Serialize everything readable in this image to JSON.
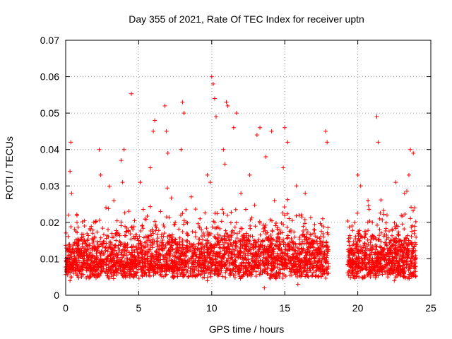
{
  "chart_data": {
    "type": "scatter",
    "title": "Day 355 of 2021, Rate Of TEC Index for receiver uptn",
    "xlabel": "GPS time / hours",
    "ylabel": "ROTI / TECUs",
    "xlim": [
      0,
      25
    ],
    "ylim": [
      0,
      0.07
    ],
    "xticks": [
      0,
      5,
      10,
      15,
      20,
      25
    ],
    "xtick_labels": [
      "0",
      "5",
      "10",
      "15",
      "20",
      "25"
    ],
    "yticks": [
      0,
      0.01,
      0.02,
      0.03,
      0.04,
      0.05,
      0.06,
      0.07
    ],
    "ytick_labels": [
      "0",
      "0.01",
      "0.02",
      "0.03",
      "0.04",
      "0.05",
      "0.06",
      "0.07"
    ],
    "grid": true,
    "legend": "none",
    "marker": "+",
    "color": "#ff0000",
    "data_gap_hours": [
      18.0,
      19.3
    ],
    "series": [
      {
        "x": [
          0.1,
          0.2,
          0.3,
          0.35,
          0.4,
          0.5,
          0.7,
          1.0,
          1.3,
          1.6,
          2.0,
          2.3,
          2.4,
          2.45,
          2.6,
          2.9,
          3.1,
          3.3,
          3.5,
          3.6,
          3.8,
          3.9,
          4.0,
          4.2,
          4.5,
          4.6,
          4.8,
          5.0,
          5.1,
          5.3,
          5.6,
          5.8,
          6.0,
          6.1,
          6.3,
          6.5,
          6.6,
          6.8,
          6.9,
          7.0,
          7.2,
          7.5,
          7.8,
          7.9,
          8.0,
          8.1,
          8.3,
          8.6,
          8.9,
          9.2,
          9.5,
          9.7,
          9.9,
          10.0,
          10.1,
          10.2,
          10.3,
          10.6,
          10.8,
          10.9,
          11.0,
          11.1,
          11.3,
          11.5,
          11.7,
          12.0,
          12.3,
          12.6,
          12.9,
          13.1,
          13.3,
          13.5,
          13.7,
          13.9,
          14.1,
          14.3,
          14.6,
          14.9,
          15.0,
          15.2,
          15.5,
          15.8,
          16.1,
          16.4,
          16.7,
          17.0,
          17.3,
          17.6,
          17.8,
          17.9,
          19.4,
          19.6,
          19.8,
          20.0,
          20.2,
          20.4,
          20.7,
          21.0,
          21.3,
          21.4,
          21.7,
          22.0,
          22.3,
          22.6,
          22.9,
          23.2,
          23.5,
          23.6,
          23.8,
          23.9,
          0.3,
          2.4,
          4.4,
          5.2,
          7.3,
          9.7,
          11.3,
          13.6,
          15.9,
          18.0,
          20.5,
          22.5
        ],
        "y": [
          0.0085,
          0.022,
          0.034,
          0.042,
          0.028,
          0.012,
          0.009,
          0.011,
          0.008,
          0.014,
          0.01,
          0.04,
          0.033,
          0.012,
          0.009,
          0.018,
          0.011,
          0.026,
          0.009,
          0.013,
          0.037,
          0.031,
          0.04,
          0.011,
          0.0553,
          0.018,
          0.01,
          0.015,
          0.031,
          0.009,
          0.012,
          0.035,
          0.045,
          0.048,
          0.014,
          0.023,
          0.011,
          0.052,
          0.045,
          0.039,
          0.012,
          0.02,
          0.01,
          0.04,
          0.053,
          0.05,
          0.013,
          0.027,
          0.009,
          0.021,
          0.011,
          0.033,
          0.031,
          0.06,
          0.058,
          0.054,
          0.049,
          0.015,
          0.04,
          0.036,
          0.053,
          0.052,
          0.01,
          0.046,
          0.05,
          0.028,
          0.011,
          0.033,
          0.009,
          0.044,
          0.046,
          0.015,
          0.038,
          0.011,
          0.045,
          0.026,
          0.01,
          0.035,
          0.046,
          0.042,
          0.013,
          0.03,
          0.009,
          0.028,
          0.011,
          0.018,
          0.009,
          0.021,
          0.045,
          0.042,
          0.008,
          0.019,
          0.011,
          0.033,
          0.03,
          0.009,
          0.026,
          0.02,
          0.049,
          0.042,
          0.011,
          0.022,
          0.009,
          0.031,
          0.012,
          0.028,
          0.033,
          0.04,
          0.039,
          0.024,
          0.004,
          0.006,
          0.005,
          0.007,
          0.005,
          0.004,
          0.006,
          0.002,
          0.003,
          0.006,
          0.005,
          0.004
        ]
      }
    ]
  }
}
